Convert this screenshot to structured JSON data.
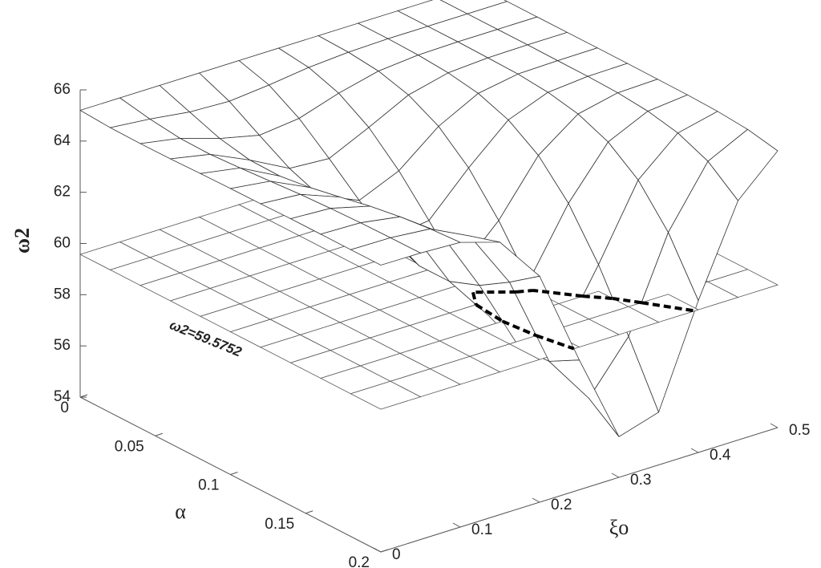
{
  "chart_data": {
    "type": "surface",
    "xlabel": "ξo",
    "ylabel": "α",
    "zlabel": "ω2",
    "annotation": "ω2=59.5752",
    "plane_z": 59.5752,
    "x": [
      0,
      0.05,
      0.1,
      0.15,
      0.2,
      0.25,
      0.3,
      0.35,
      0.4,
      0.45,
      0.5
    ],
    "y": [
      0,
      0.02,
      0.04,
      0.06,
      0.08,
      0.1,
      0.12,
      0.14,
      0.16,
      0.18,
      0.2
    ],
    "z": [
      [
        65.2,
        65.2,
        65.2,
        65.2,
        65.2,
        65.2,
        65.2,
        65.2,
        65.2,
        65.2,
        65.2
      ],
      [
        65.13,
        64.98,
        64.77,
        64.7,
        64.85,
        65.05,
        65.16,
        65.2,
        65.2,
        65.2,
        65.2
      ],
      [
        65.11,
        64.83,
        64.34,
        63.98,
        64.15,
        64.65,
        65.03,
        65.17,
        65.2,
        65.2,
        65.2
      ],
      [
        65.12,
        64.81,
        64.1,
        63.29,
        63.19,
        63.92,
        64.7,
        65.08,
        65.18,
        65.2,
        65.2
      ],
      [
        65.15,
        64.88,
        64.08,
        62.83,
        62.16,
        62.83,
        64.08,
        64.88,
        65.15,
        65.19,
        65.2
      ],
      [
        65.17,
        64.97,
        64.24,
        62.71,
        61.3,
        61.49,
        63.06,
        64.45,
        65.04,
        65.18,
        65.2
      ],
      [
        65.18,
        65.06,
        64.47,
        62.91,
        60.81,
        60.1,
        61.61,
        63.67,
        64.8,
        65.14,
        65.19
      ],
      [
        65.2,
        65.12,
        64.72,
        63.33,
        60.81,
        58.97,
        59.84,
        62.4,
        64.31,
        65.03,
        65.18
      ],
      [
        65.2,
        65.16,
        64.91,
        63.82,
        61.26,
        58.36,
        58.01,
        60.61,
        63.43,
        64.78,
        65.14
      ],
      [
        65.2,
        65.18,
        65.04,
        64.28,
        61.99,
        58.41,
        56.48,
        58.41,
        61.99,
        64.28,
        65.04
      ],
      [
        65.2,
        65.19,
        65.12,
        64.64,
        62.83,
        59.07,
        55.59,
        56.06,
        59.93,
        63.35,
        64.81
      ]
    ],
    "xlim": [
      0,
      0.5
    ],
    "ylim": [
      0,
      0.2
    ],
    "zlim": [
      54,
      66
    ],
    "xticks": [
      0,
      0.1,
      0.2,
      0.3,
      0.4,
      0.5
    ],
    "yticks": [
      0,
      0.05,
      0.1,
      0.15,
      0.2
    ],
    "zticks": [
      54,
      56,
      58,
      60,
      62,
      64,
      66
    ]
  }
}
